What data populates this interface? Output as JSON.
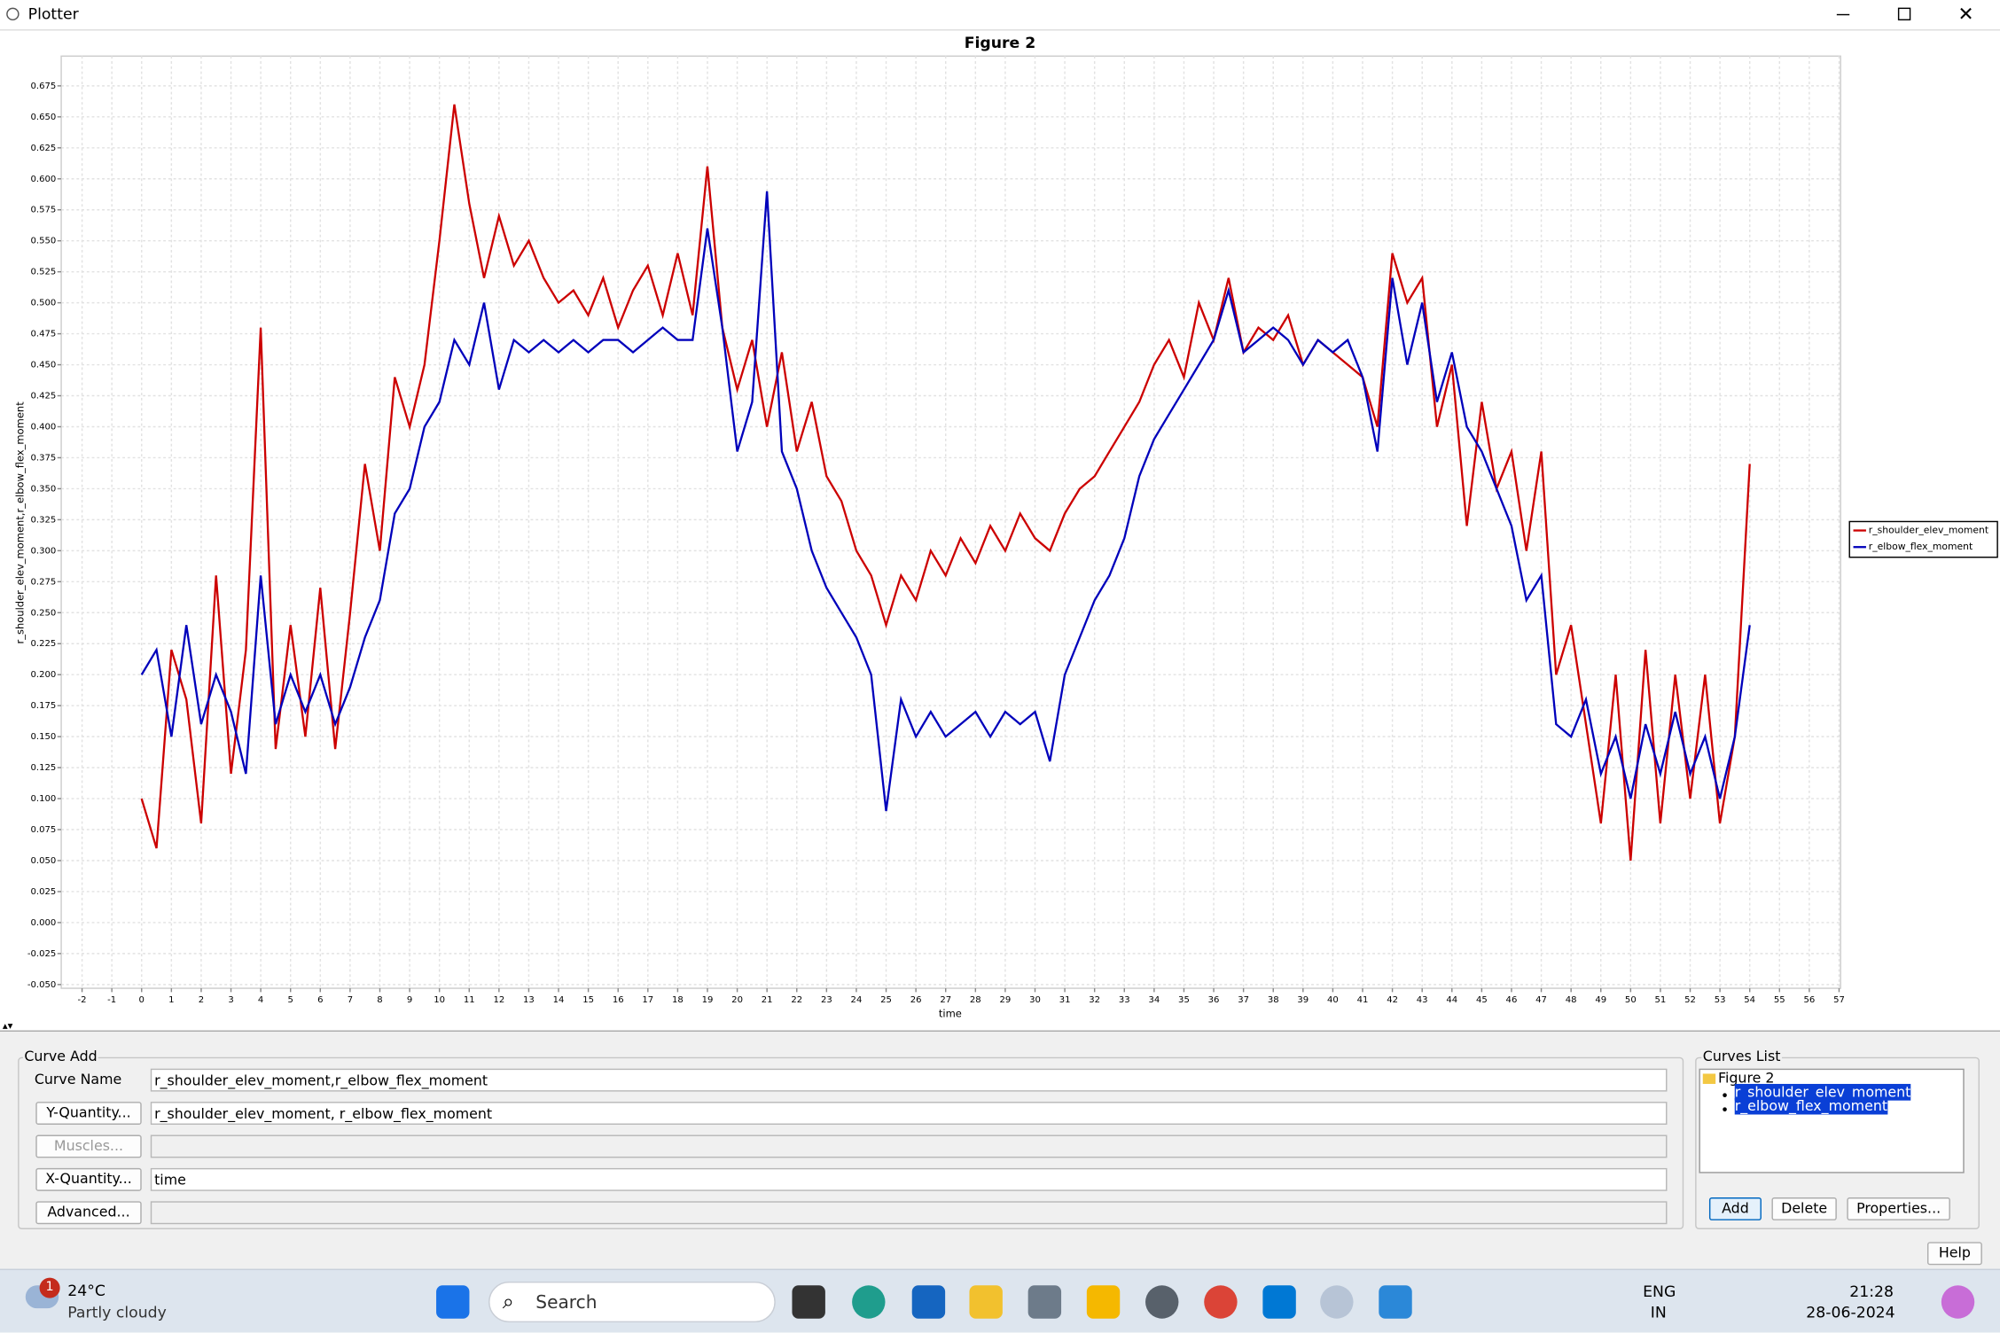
{
  "window": {
    "title": "Plotter"
  },
  "chart_data": {
    "type": "line",
    "title": "Figure 2",
    "x_label": "time",
    "y_label": "r_shoulder_elev_moment,r_elbow_flex_moment",
    "x": [
      0,
      0.5,
      1,
      1.5,
      2,
      2.5,
      3,
      3.5,
      4,
      4.5,
      5,
      5.5,
      6,
      6.5,
      7,
      7.5,
      8,
      8.5,
      9,
      9.5,
      10,
      10.5,
      11,
      11.5,
      12,
      12.5,
      13,
      13.5,
      14,
      14.5,
      15,
      15.5,
      16,
      16.5,
      17,
      17.5,
      18,
      18.5,
      19,
      19.5,
      20,
      20.5,
      21,
      21.5,
      22,
      22.5,
      23,
      23.5,
      24,
      24.5,
      25,
      25.5,
      26,
      26.5,
      27,
      27.5,
      28,
      28.5,
      29,
      29.5,
      30,
      30.5,
      31,
      31.5,
      32,
      32.5,
      33,
      33.5,
      34,
      34.5,
      35,
      35.5,
      36,
      36.5,
      37,
      37.5,
      38,
      38.5,
      39,
      39.5,
      40,
      40.5,
      41,
      41.5,
      42,
      42.5,
      43,
      43.5,
      44,
      44.5,
      45,
      45.5,
      46,
      46.5,
      47,
      47.5,
      48,
      48.5,
      49,
      49.5,
      50,
      50.5,
      51,
      51.5,
      52,
      52.5,
      53,
      53.5,
      54
    ],
    "series": [
      {
        "name": "r_shoulder_elev_moment",
        "color": "#cc0000",
        "values": [
          0.1,
          0.06,
          0.22,
          0.18,
          0.08,
          0.28,
          0.12,
          0.22,
          0.48,
          0.14,
          0.24,
          0.15,
          0.27,
          0.14,
          0.25,
          0.37,
          0.3,
          0.44,
          0.4,
          0.45,
          0.55,
          0.66,
          0.58,
          0.52,
          0.57,
          0.53,
          0.55,
          0.52,
          0.5,
          0.51,
          0.49,
          0.52,
          0.48,
          0.51,
          0.53,
          0.49,
          0.54,
          0.49,
          0.61,
          0.48,
          0.43,
          0.47,
          0.4,
          0.46,
          0.38,
          0.42,
          0.36,
          0.34,
          0.3,
          0.28,
          0.24,
          0.28,
          0.26,
          0.3,
          0.28,
          0.31,
          0.29,
          0.32,
          0.3,
          0.33,
          0.31,
          0.3,
          0.33,
          0.35,
          0.36,
          0.38,
          0.4,
          0.42,
          0.45,
          0.47,
          0.44,
          0.5,
          0.47,
          0.52,
          0.46,
          0.48,
          0.47,
          0.49,
          0.45,
          0.47,
          0.46,
          0.45,
          0.44,
          0.4,
          0.54,
          0.5,
          0.52,
          0.4,
          0.45,
          0.32,
          0.42,
          0.35,
          0.38,
          0.3,
          0.38,
          0.2,
          0.24,
          0.16,
          0.08,
          0.2,
          0.05,
          0.22,
          0.08,
          0.2,
          0.1,
          0.2,
          0.08,
          0.15,
          0.37
        ]
      },
      {
        "name": "r_elbow_flex_moment",
        "color": "#0000bb",
        "values": [
          0.2,
          0.22,
          0.15,
          0.24,
          0.16,
          0.2,
          0.17,
          0.12,
          0.28,
          0.16,
          0.2,
          0.17,
          0.2,
          0.16,
          0.19,
          0.23,
          0.26,
          0.33,
          0.35,
          0.4,
          0.42,
          0.47,
          0.45,
          0.5,
          0.43,
          0.47,
          0.46,
          0.47,
          0.46,
          0.47,
          0.46,
          0.47,
          0.47,
          0.46,
          0.47,
          0.48,
          0.47,
          0.47,
          0.56,
          0.48,
          0.38,
          0.42,
          0.59,
          0.38,
          0.35,
          0.3,
          0.27,
          0.25,
          0.23,
          0.2,
          0.09,
          0.18,
          0.15,
          0.17,
          0.15,
          0.16,
          0.17,
          0.15,
          0.17,
          0.16,
          0.17,
          0.13,
          0.2,
          0.23,
          0.26,
          0.28,
          0.31,
          0.36,
          0.39,
          0.41,
          0.43,
          0.45,
          0.47,
          0.51,
          0.46,
          0.47,
          0.48,
          0.47,
          0.45,
          0.47,
          0.46,
          0.47,
          0.44,
          0.38,
          0.52,
          0.45,
          0.5,
          0.42,
          0.46,
          0.4,
          0.38,
          0.35,
          0.32,
          0.26,
          0.28,
          0.16,
          0.15,
          0.18,
          0.12,
          0.15,
          0.1,
          0.16,
          0.12,
          0.17,
          0.12,
          0.15,
          0.1,
          0.15,
          0.24
        ]
      }
    ],
    "xlim": [
      -2.7,
      57.05
    ],
    "ylim": [
      -0.053,
      0.699
    ],
    "xticks": [
      -2,
      -1,
      0,
      1,
      2,
      3,
      4,
      5,
      6,
      7,
      8,
      9,
      10,
      11,
      12,
      13,
      14,
      15,
      16,
      17,
      18,
      19,
      20,
      21,
      22,
      23,
      24,
      25,
      26,
      27,
      28,
      29,
      30,
      31,
      32,
      33,
      34,
      35,
      36,
      37,
      38,
      39,
      40,
      41,
      42,
      43,
      44,
      45,
      46,
      47,
      48,
      49,
      50,
      51,
      52,
      53,
      54,
      55,
      56,
      57
    ],
    "yticks": [
      {
        "value": -0.05,
        "label": "-0.050"
      },
      {
        "value": -0.025,
        "label": "-0.025"
      },
      {
        "value": 0,
        "label": "0.000"
      },
      {
        "value": 0.025,
        "label": "0.025"
      },
      {
        "value": 0.05,
        "label": "0.050"
      },
      {
        "value": 0.075,
        "label": "0.075"
      },
      {
        "value": 0.1,
        "label": "0.100"
      },
      {
        "value": 0.125,
        "label": "0.125"
      },
      {
        "value": 0.15,
        "label": "0.150"
      },
      {
        "value": 0.175,
        "label": "0.175"
      },
      {
        "value": 0.2,
        "label": "0.200"
      },
      {
        "value": 0.225,
        "label": "0.225"
      },
      {
        "value": 0.25,
        "label": "0.250"
      },
      {
        "value": 0.275,
        "label": "0.275"
      },
      {
        "value": 0.3,
        "label": "0.300"
      },
      {
        "value": 0.325,
        "label": "0.325"
      },
      {
        "value": 0.35,
        "label": "0.350"
      },
      {
        "value": 0.375,
        "label": "0.375"
      },
      {
        "value": 0.4,
        "label": "0.400"
      },
      {
        "value": 0.425,
        "label": "0.425"
      },
      {
        "value": 0.45,
        "label": "0.450"
      },
      {
        "value": 0.475,
        "label": "0.475"
      },
      {
        "value": 0.5,
        "label": "0.500"
      },
      {
        "value": 0.525,
        "label": "0.525"
      },
      {
        "value": 0.55,
        "label": "0.550"
      },
      {
        "value": 0.575,
        "label": "0.575"
      },
      {
        "value": 0.6,
        "label": "0.600"
      },
      {
        "value": 0.625,
        "label": "0.625"
      },
      {
        "value": 0.65,
        "label": "0.650"
      },
      {
        "value": 0.675,
        "label": "0.675"
      }
    ],
    "grid": true,
    "legend": "right"
  },
  "curve_add": {
    "title": "Curve Add",
    "curve_name_label": "Curve Name",
    "curve_name": "r_shoulder_elev_moment,r_elbow_flex_moment",
    "y_quantity_button": "Y-Quantity...",
    "y_quantity": "r_shoulder_elev_moment, r_elbow_flex_moment",
    "muscles_button": "Muscles...",
    "x_quantity_button": "X-Quantity...",
    "x_quantity": "time",
    "advanced_button": "Advanced..."
  },
  "curves_list": {
    "title": "Curves List",
    "root": "Figure 2",
    "items": [
      "r_shoulder_elev_moment",
      "r_elbow_flex_moment"
    ],
    "buttons": [
      "Add",
      "Delete",
      "Properties..."
    ]
  },
  "help_button": "Help",
  "taskbar": {
    "temperature": "24°C",
    "weather": "Partly cloudy",
    "badge": "1",
    "search": "Search",
    "language": "ENG",
    "region": "IN",
    "time": "21:28",
    "date": "28-06-2024"
  }
}
